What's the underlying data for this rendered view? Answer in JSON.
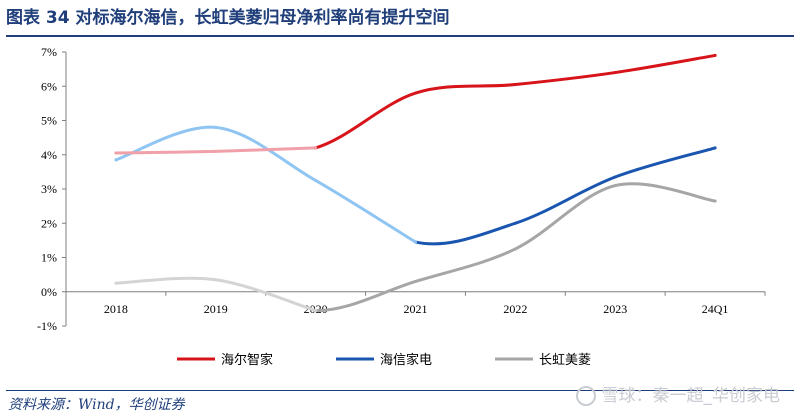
{
  "header": {
    "title": "图表 34  对标海尔海信，长虹美菱归母净利率尚有提升空间"
  },
  "footer": {
    "source": "资料来源：Wind，华创证券",
    "watermark": "雪球：秦一超_华创家电"
  },
  "chart_data": {
    "type": "line",
    "title": "",
    "xlabel": "",
    "ylabel": "",
    "categories": [
      "2018",
      "2019",
      "2020",
      "2021",
      "2022",
      "2023",
      "24Q1"
    ],
    "ylim": [
      -1,
      7
    ],
    "yticks": [
      "-1%",
      "0%",
      "1%",
      "2%",
      "3%",
      "4%",
      "5%",
      "6%",
      "7%"
    ],
    "grid": false,
    "legend_position": "bottom",
    "series": [
      {
        "name": "海尔智家",
        "color": "#d7141a",
        "faded_color": "#f0a0a8",
        "faded_until_index": 2,
        "values": [
          4.05,
          4.1,
          4.2,
          5.8,
          6.05,
          6.4,
          6.9
        ]
      },
      {
        "name": "海信家电",
        "color": "#1a56b0",
        "faded_color": "#8fc5f2",
        "faded_until_index": 3,
        "values": [
          3.85,
          4.8,
          3.25,
          1.45,
          2.0,
          3.35,
          4.2
        ]
      },
      {
        "name": "长虹美菱",
        "color": "#a6a6a6",
        "faded_color": "#d4d4d4",
        "faded_until_index": 2,
        "values": [
          0.25,
          0.35,
          -0.55,
          0.3,
          1.25,
          3.1,
          2.65
        ]
      }
    ]
  }
}
